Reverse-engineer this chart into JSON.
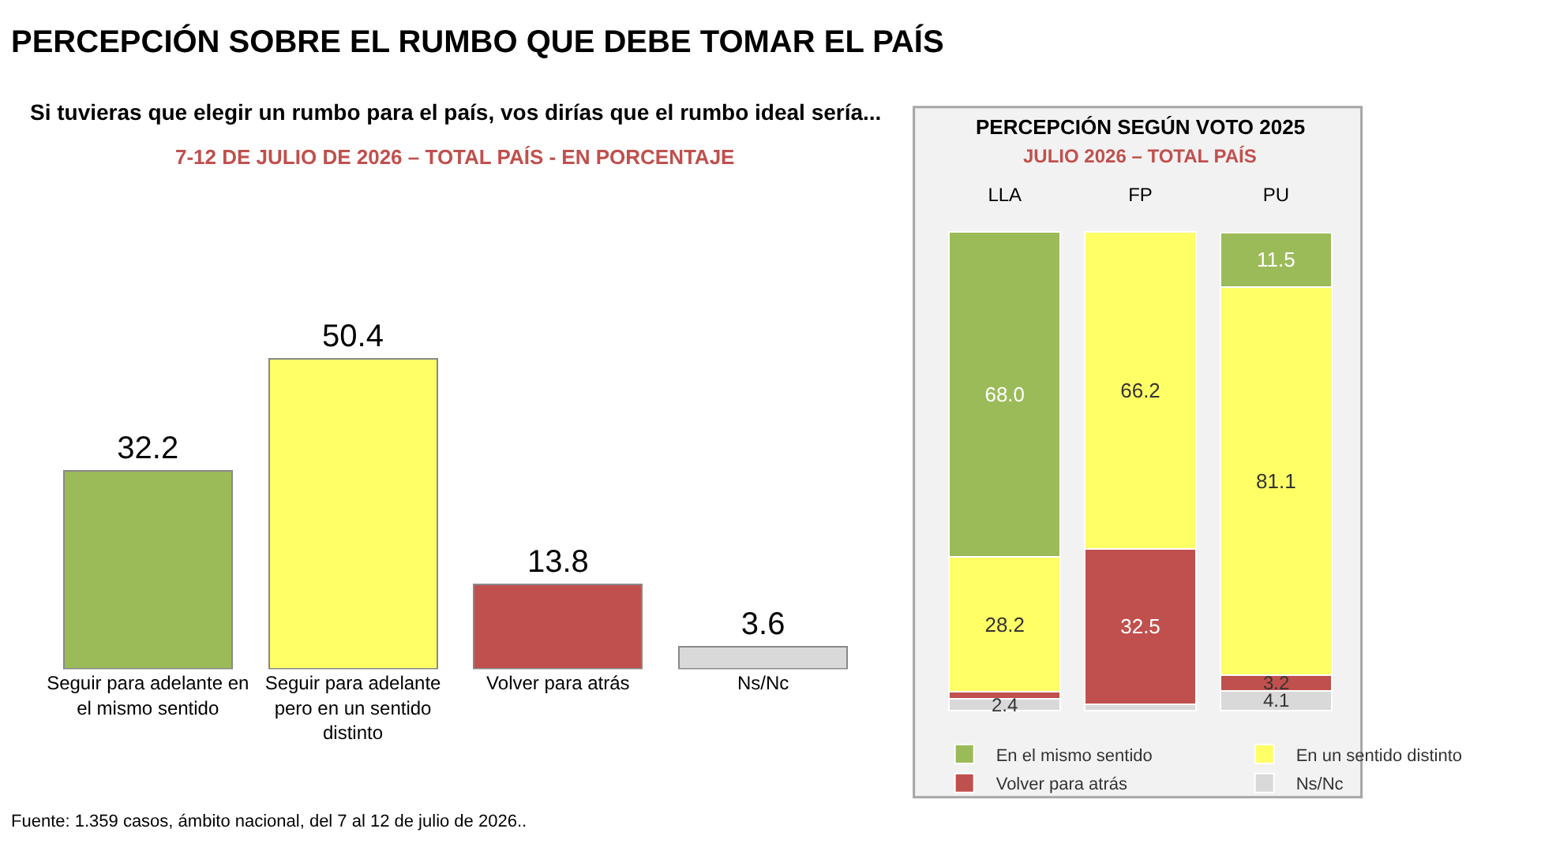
{
  "chart_data": [
    {
      "type": "bar",
      "title": "PERCEPCIÓN SOBRE EL RUMBO QUE DEBE TOMAR EL PAÍS",
      "subtitle": "Si tuvieras que elegir un rumbo para el país, vos dirías que el rumbo ideal sería...",
      "annotations": [
        "7-12 DE JULIO DE 2026 – TOTAL PAÍS - EN PORCENTAJE",
        "Fuente: 1.359 casos, ámbito nacional, del 7 al 12 de julio de 2026.."
      ],
      "categories": [
        "Seguir para adelante en el mismo sentido",
        "Seguir para adelante pero en un sentido distinto",
        "Volver para atrás",
        "Ns/Nc"
      ],
      "values": [
        32.2,
        50.4,
        13.8,
        3.6
      ],
      "colors": [
        "#9bbb59",
        "#ffff66",
        "#c0504d",
        "#d9d9d9"
      ],
      "data_labels": true
    },
    {
      "type": "bar",
      "stacked": true,
      "title": "PERCEPCIÓN SEGÚN VOTO 2025",
      "subtitle": "JULIO 2026 – TOTAL PAÍS",
      "categories": [
        "LLA",
        "FP",
        "PU"
      ],
      "legend": "bottom",
      "series": [
        {
          "name": "Ns/Nc",
          "color": "#d9d9d9",
          "values": [
            2.4,
            1.3,
            4.1
          ],
          "value_labels": [
            "2.4",
            null,
            "4.1"
          ]
        },
        {
          "name": "Volver para atrás",
          "color": "#c0504d",
          "values": [
            1.4,
            32.5,
            3.2
          ],
          "value_labels": [
            null,
            "32.5",
            "3.2"
          ]
        },
        {
          "name": "En un sentido distinto",
          "color": "#ffff66",
          "values": [
            28.2,
            66.2,
            81.1
          ],
          "value_labels": [
            "28.2",
            "66.2",
            "81.1"
          ]
        },
        {
          "name": "En el mismo sentido",
          "color": "#9bbb59",
          "values": [
            68.0,
            null,
            11.5
          ],
          "value_labels": [
            "68.0",
            null,
            "11.5"
          ]
        }
      ]
    }
  ]
}
